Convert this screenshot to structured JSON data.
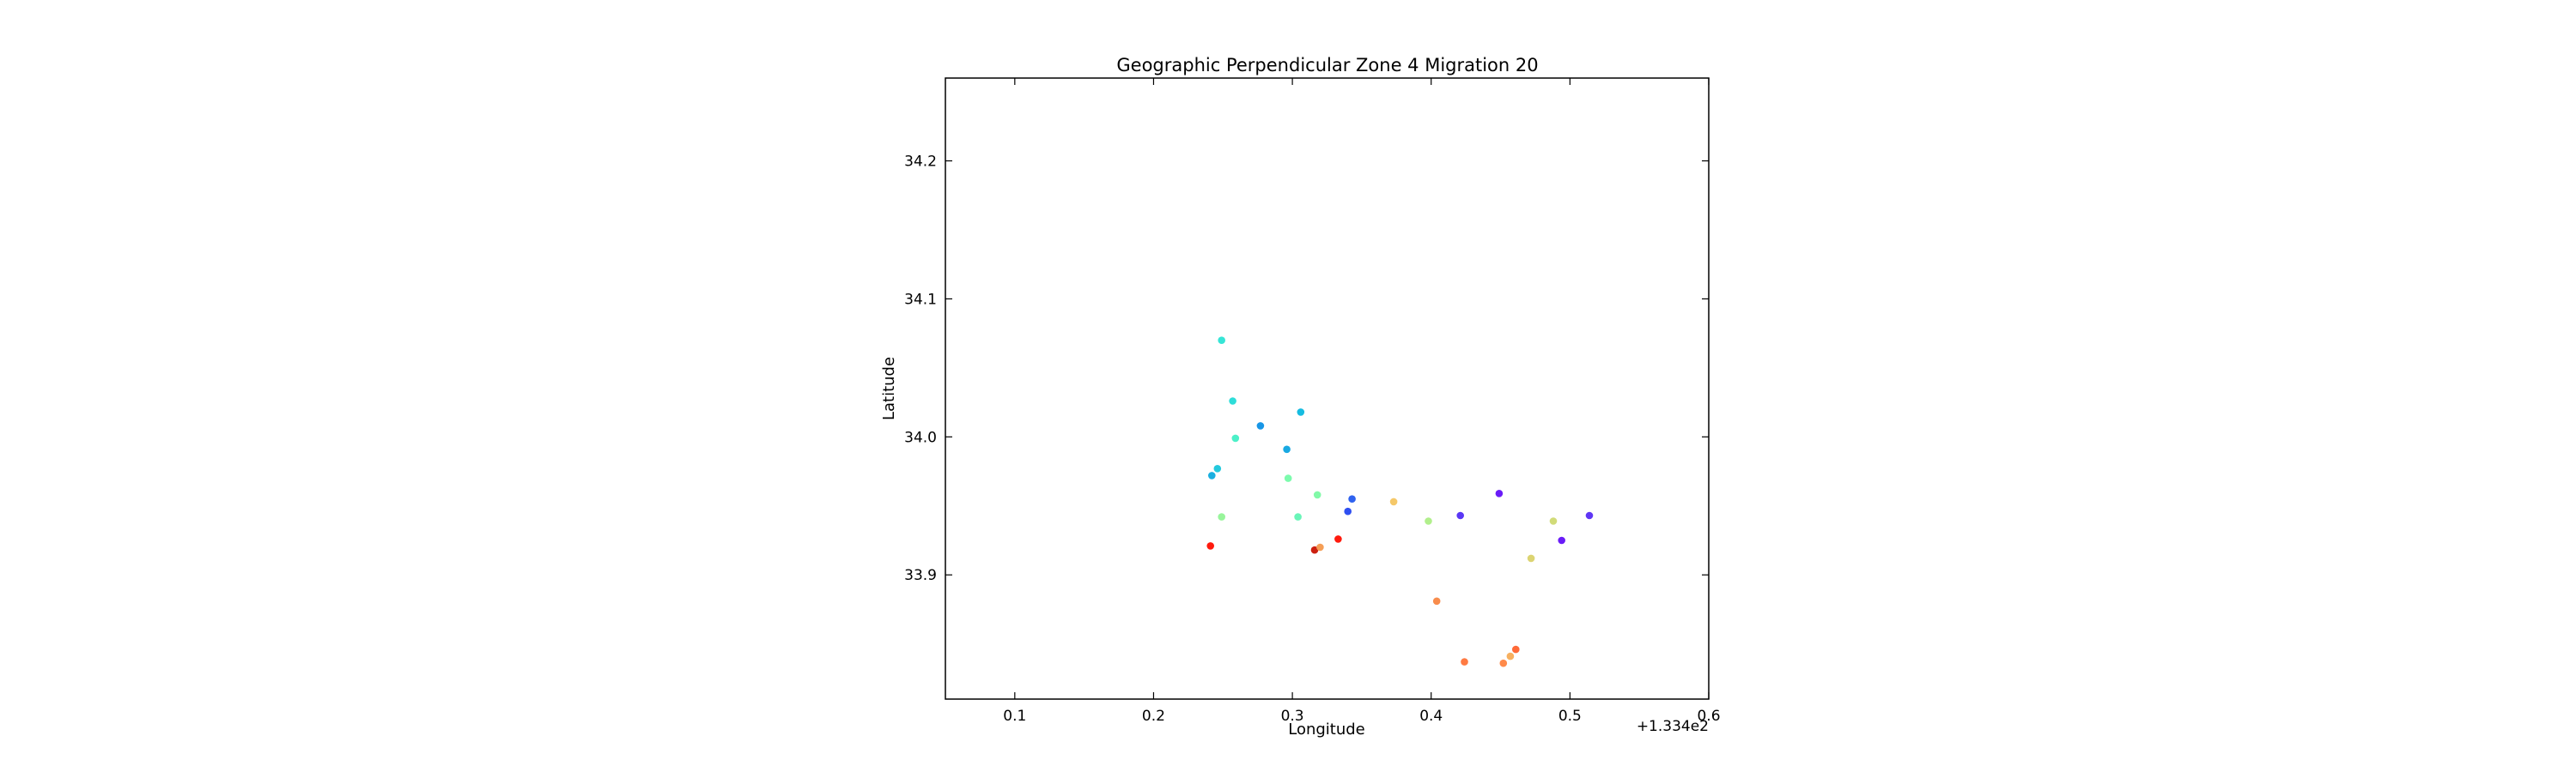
{
  "chart_data": {
    "type": "scatter",
    "title": "Geographic Perpendicular Zone 4 Migration 20",
    "xlabel": "Longitude",
    "ylabel": "Latitude",
    "x_offset_label": "+1.334e2",
    "xlim": [
      133.45,
      134.0
    ],
    "ylim": [
      33.81,
      34.26
    ],
    "x_tick_values": [
      133.5,
      133.6,
      133.7,
      133.8,
      133.9,
      134.0
    ],
    "x_tick_labels": [
      "0.1",
      "0.2",
      "0.3",
      "0.4",
      "0.5",
      "0.6"
    ],
    "y_tick_values": [
      33.9,
      34.0,
      34.1,
      34.2
    ],
    "y_tick_labels": [
      "33.9",
      "34.0",
      "34.1",
      "34.2"
    ],
    "grid": false,
    "colormap": "rainbow",
    "points": [
      {
        "x": 133.649,
        "y": 34.07,
        "color": "#36e5d6"
      },
      {
        "x": 133.657,
        "y": 34.026,
        "color": "#2dddd9"
      },
      {
        "x": 133.706,
        "y": 34.018,
        "color": "#16bce1"
      },
      {
        "x": 133.677,
        "y": 34.008,
        "color": "#1896e6"
      },
      {
        "x": 133.696,
        "y": 33.991,
        "color": "#19a9e2"
      },
      {
        "x": 133.659,
        "y": 33.999,
        "color": "#4cf0c8"
      },
      {
        "x": 133.646,
        "y": 33.977,
        "color": "#23c9dd"
      },
      {
        "x": 133.642,
        "y": 33.972,
        "color": "#1aafe0"
      },
      {
        "x": 133.697,
        "y": 33.97,
        "color": "#7cfbad"
      },
      {
        "x": 133.718,
        "y": 33.958,
        "color": "#82f9a8"
      },
      {
        "x": 133.743,
        "y": 33.955,
        "color": "#2f62ef"
      },
      {
        "x": 133.74,
        "y": 33.946,
        "color": "#2f4ff1"
      },
      {
        "x": 133.704,
        "y": 33.942,
        "color": "#69f5b8"
      },
      {
        "x": 133.649,
        "y": 33.942,
        "color": "#98f59b"
      },
      {
        "x": 133.773,
        "y": 33.953,
        "color": "#f5c869"
      },
      {
        "x": 133.798,
        "y": 33.939,
        "color": "#b1ef8c"
      },
      {
        "x": 133.821,
        "y": 33.943,
        "color": "#5a37f5"
      },
      {
        "x": 133.849,
        "y": 33.959,
        "color": "#6a1cf8"
      },
      {
        "x": 133.888,
        "y": 33.939,
        "color": "#d1db78"
      },
      {
        "x": 133.914,
        "y": 33.943,
        "color": "#5f36f5"
      },
      {
        "x": 133.894,
        "y": 33.925,
        "color": "#6a1cf8"
      },
      {
        "x": 133.872,
        "y": 33.912,
        "color": "#dcd472"
      },
      {
        "x": 133.733,
        "y": 33.926,
        "color": "#ff1a0d"
      },
      {
        "x": 133.716,
        "y": 33.918,
        "color": "#cc2010"
      },
      {
        "x": 133.72,
        "y": 33.92,
        "color": "#f59e56"
      },
      {
        "x": 133.641,
        "y": 33.921,
        "color": "#ff1a0d"
      },
      {
        "x": 133.804,
        "y": 33.881,
        "color": "#f88c4c"
      },
      {
        "x": 133.861,
        "y": 33.846,
        "color": "#ff6a38"
      },
      {
        "x": 133.857,
        "y": 33.841,
        "color": "#f7b060"
      },
      {
        "x": 133.852,
        "y": 33.836,
        "color": "#ff8a4a"
      },
      {
        "x": 133.824,
        "y": 33.837,
        "color": "#ff7a42"
      }
    ]
  }
}
